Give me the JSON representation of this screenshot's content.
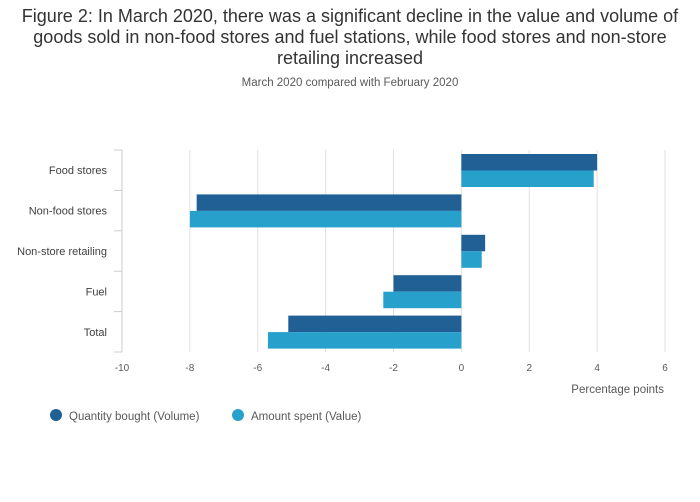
{
  "chart_data": {
    "type": "bar",
    "orientation": "horizontal",
    "title": "Figure 2: In March 2020, there was a significant decline in the value and volume of goods sold in non-food stores and fuel stations, while food stores and non-store retailing increased",
    "subtitle": "March 2020 compared with February 2020",
    "categories": [
      "Food stores",
      "Non-food stores",
      "Non-store retailing",
      "Fuel",
      "Total"
    ],
    "series": [
      {
        "name": "Quantity bought (Volume)",
        "color": "#206095",
        "values": [
          4.0,
          -7.8,
          0.7,
          -2.0,
          -5.1
        ]
      },
      {
        "name": "Amount spent (Value)",
        "color": "#27a0cc",
        "values": [
          3.9,
          -8.0,
          0.6,
          -2.3,
          -5.7
        ]
      }
    ],
    "xlabel": "Percentage points",
    "ylabel": "",
    "xlim": [
      -10,
      6
    ],
    "xticks": [
      "-10",
      "-8",
      "-6",
      "-4",
      "-2",
      "0",
      "2",
      "4",
      "6"
    ],
    "grid": true,
    "legend": "bottom-left"
  }
}
